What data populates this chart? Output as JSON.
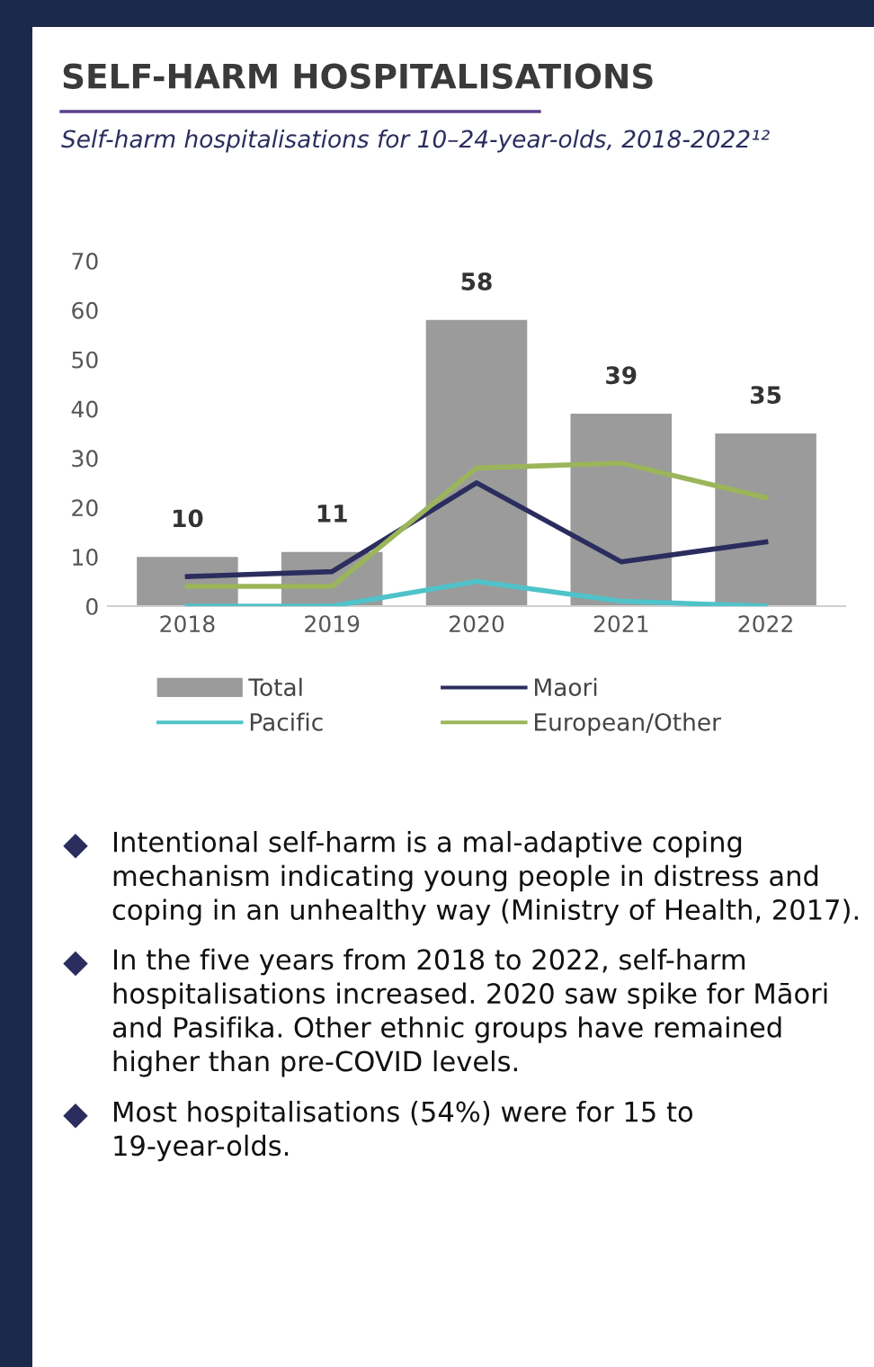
{
  "chart_data": {
    "type": "bar",
    "title": "SELF-HARM HOSPITALISATIONS",
    "subtitle": "Self-harm hospitalisations for 10–24-year-olds, 2018-2022¹²",
    "categories": [
      "2018",
      "2019",
      "2020",
      "2021",
      "2022"
    ],
    "series": [
      {
        "name": "Total",
        "color": "#9b9b9b",
        "values": [
          10,
          11,
          58,
          39,
          35
        ],
        "value_labels": [
          "10",
          "11",
          "58",
          "39",
          "35"
        ]
      },
      {
        "name": "Maori",
        "type": "line",
        "color": "#2b2d5e",
        "values": [
          6,
          7,
          25,
          9,
          13
        ]
      },
      {
        "name": "Pacific",
        "type": "line",
        "color": "#4fc3c9",
        "values": [
          0,
          0,
          5,
          1,
          0
        ]
      },
      {
        "name": "European/Other",
        "type": "line",
        "color": "#9bb55a",
        "values": [
          4,
          4,
          28,
          29,
          22
        ]
      }
    ],
    "ylim": [
      0,
      70
    ],
    "yticks": [
      0,
      10,
      20,
      30,
      40,
      50,
      60,
      70
    ],
    "grid": false,
    "legend": "bottom",
    "annotations": [
      "Intentional self-harm is a mal-adaptive coping mechanism indicating young people in distress and coping in an unhealthy way (Ministry of Health, 2017).",
      "In the five years from 2018 to 2022, self-harm hospitalisations increased. 2020 saw spike for Māori and Pasifika. Other ethnic groups have remained higher than pre-COVID levels.",
      "Most hospitalisations (54%) were for 15 to 19-year-olds."
    ]
  }
}
